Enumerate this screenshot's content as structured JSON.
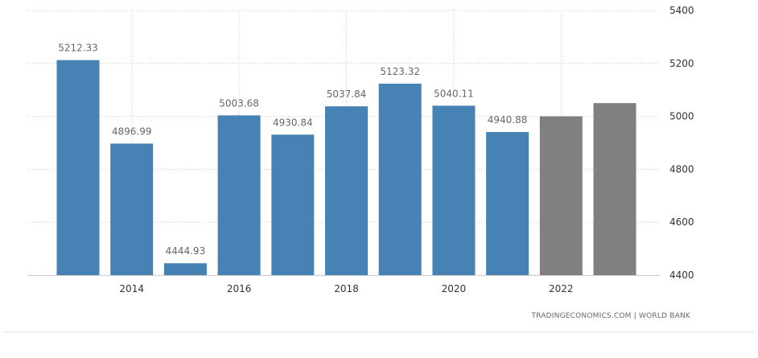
{
  "chart_data": {
    "type": "bar",
    "categories": [
      "2013",
      "2014",
      "2015",
      "2016",
      "2017",
      "2018",
      "2019",
      "2020",
      "2021",
      "2022",
      "2023"
    ],
    "values": [
      5212.33,
      4896.99,
      4444.93,
      5003.68,
      4930.84,
      5037.84,
      5123.32,
      5040.11,
      4940.88,
      5000,
      5050
    ],
    "value_labels": [
      "5212.33",
      "4896.99",
      "4444.93",
      "5003.68",
      "4930.84",
      "5037.84",
      "5123.32",
      "5040.11",
      "4940.88",
      "",
      ""
    ],
    "forecast": [
      false,
      false,
      false,
      false,
      false,
      false,
      false,
      false,
      false,
      true,
      true
    ],
    "x_tick_labels": [
      "2014",
      "2016",
      "2018",
      "2020",
      "2022"
    ],
    "y_ticks": [
      4400,
      4600,
      4800,
      5000,
      5200,
      5400
    ],
    "ylim": [
      4400,
      5400
    ],
    "y_axis_position": "right",
    "grid": true,
    "title": "",
    "xlabel": "",
    "ylabel": "",
    "colors": {
      "actual": "#4682b4",
      "forecast": "#808080",
      "grid": "#cccccc",
      "tick_text": "#333333",
      "value_label": "#666666"
    }
  },
  "footer": {
    "credit": "TRADINGECONOMICS.COM | WORLD BANK"
  }
}
